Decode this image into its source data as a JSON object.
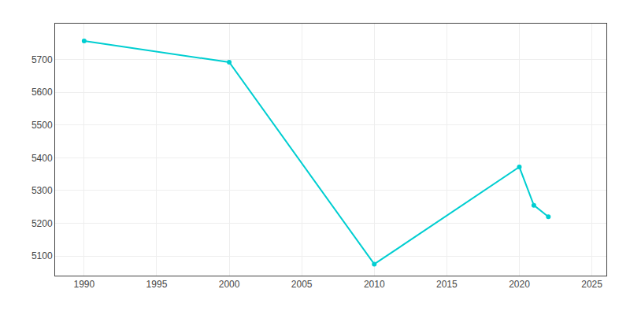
{
  "chart_data": {
    "type": "line",
    "x": [
      1990,
      2000,
      2010,
      2020,
      2021,
      2022
    ],
    "values": [
      5757,
      5692,
      5075,
      5372,
      5255,
      5220
    ],
    "color": "#00CED1",
    "marker": "circle",
    "xlim": [
      1988,
      2026
    ],
    "ylim": [
      5040,
      5810
    ],
    "xticks": [
      1990,
      1995,
      2000,
      2005,
      2010,
      2015,
      2020,
      2025
    ],
    "yticks": [
      5100,
      5200,
      5300,
      5400,
      5500,
      5600,
      5700
    ],
    "grid": true
  }
}
